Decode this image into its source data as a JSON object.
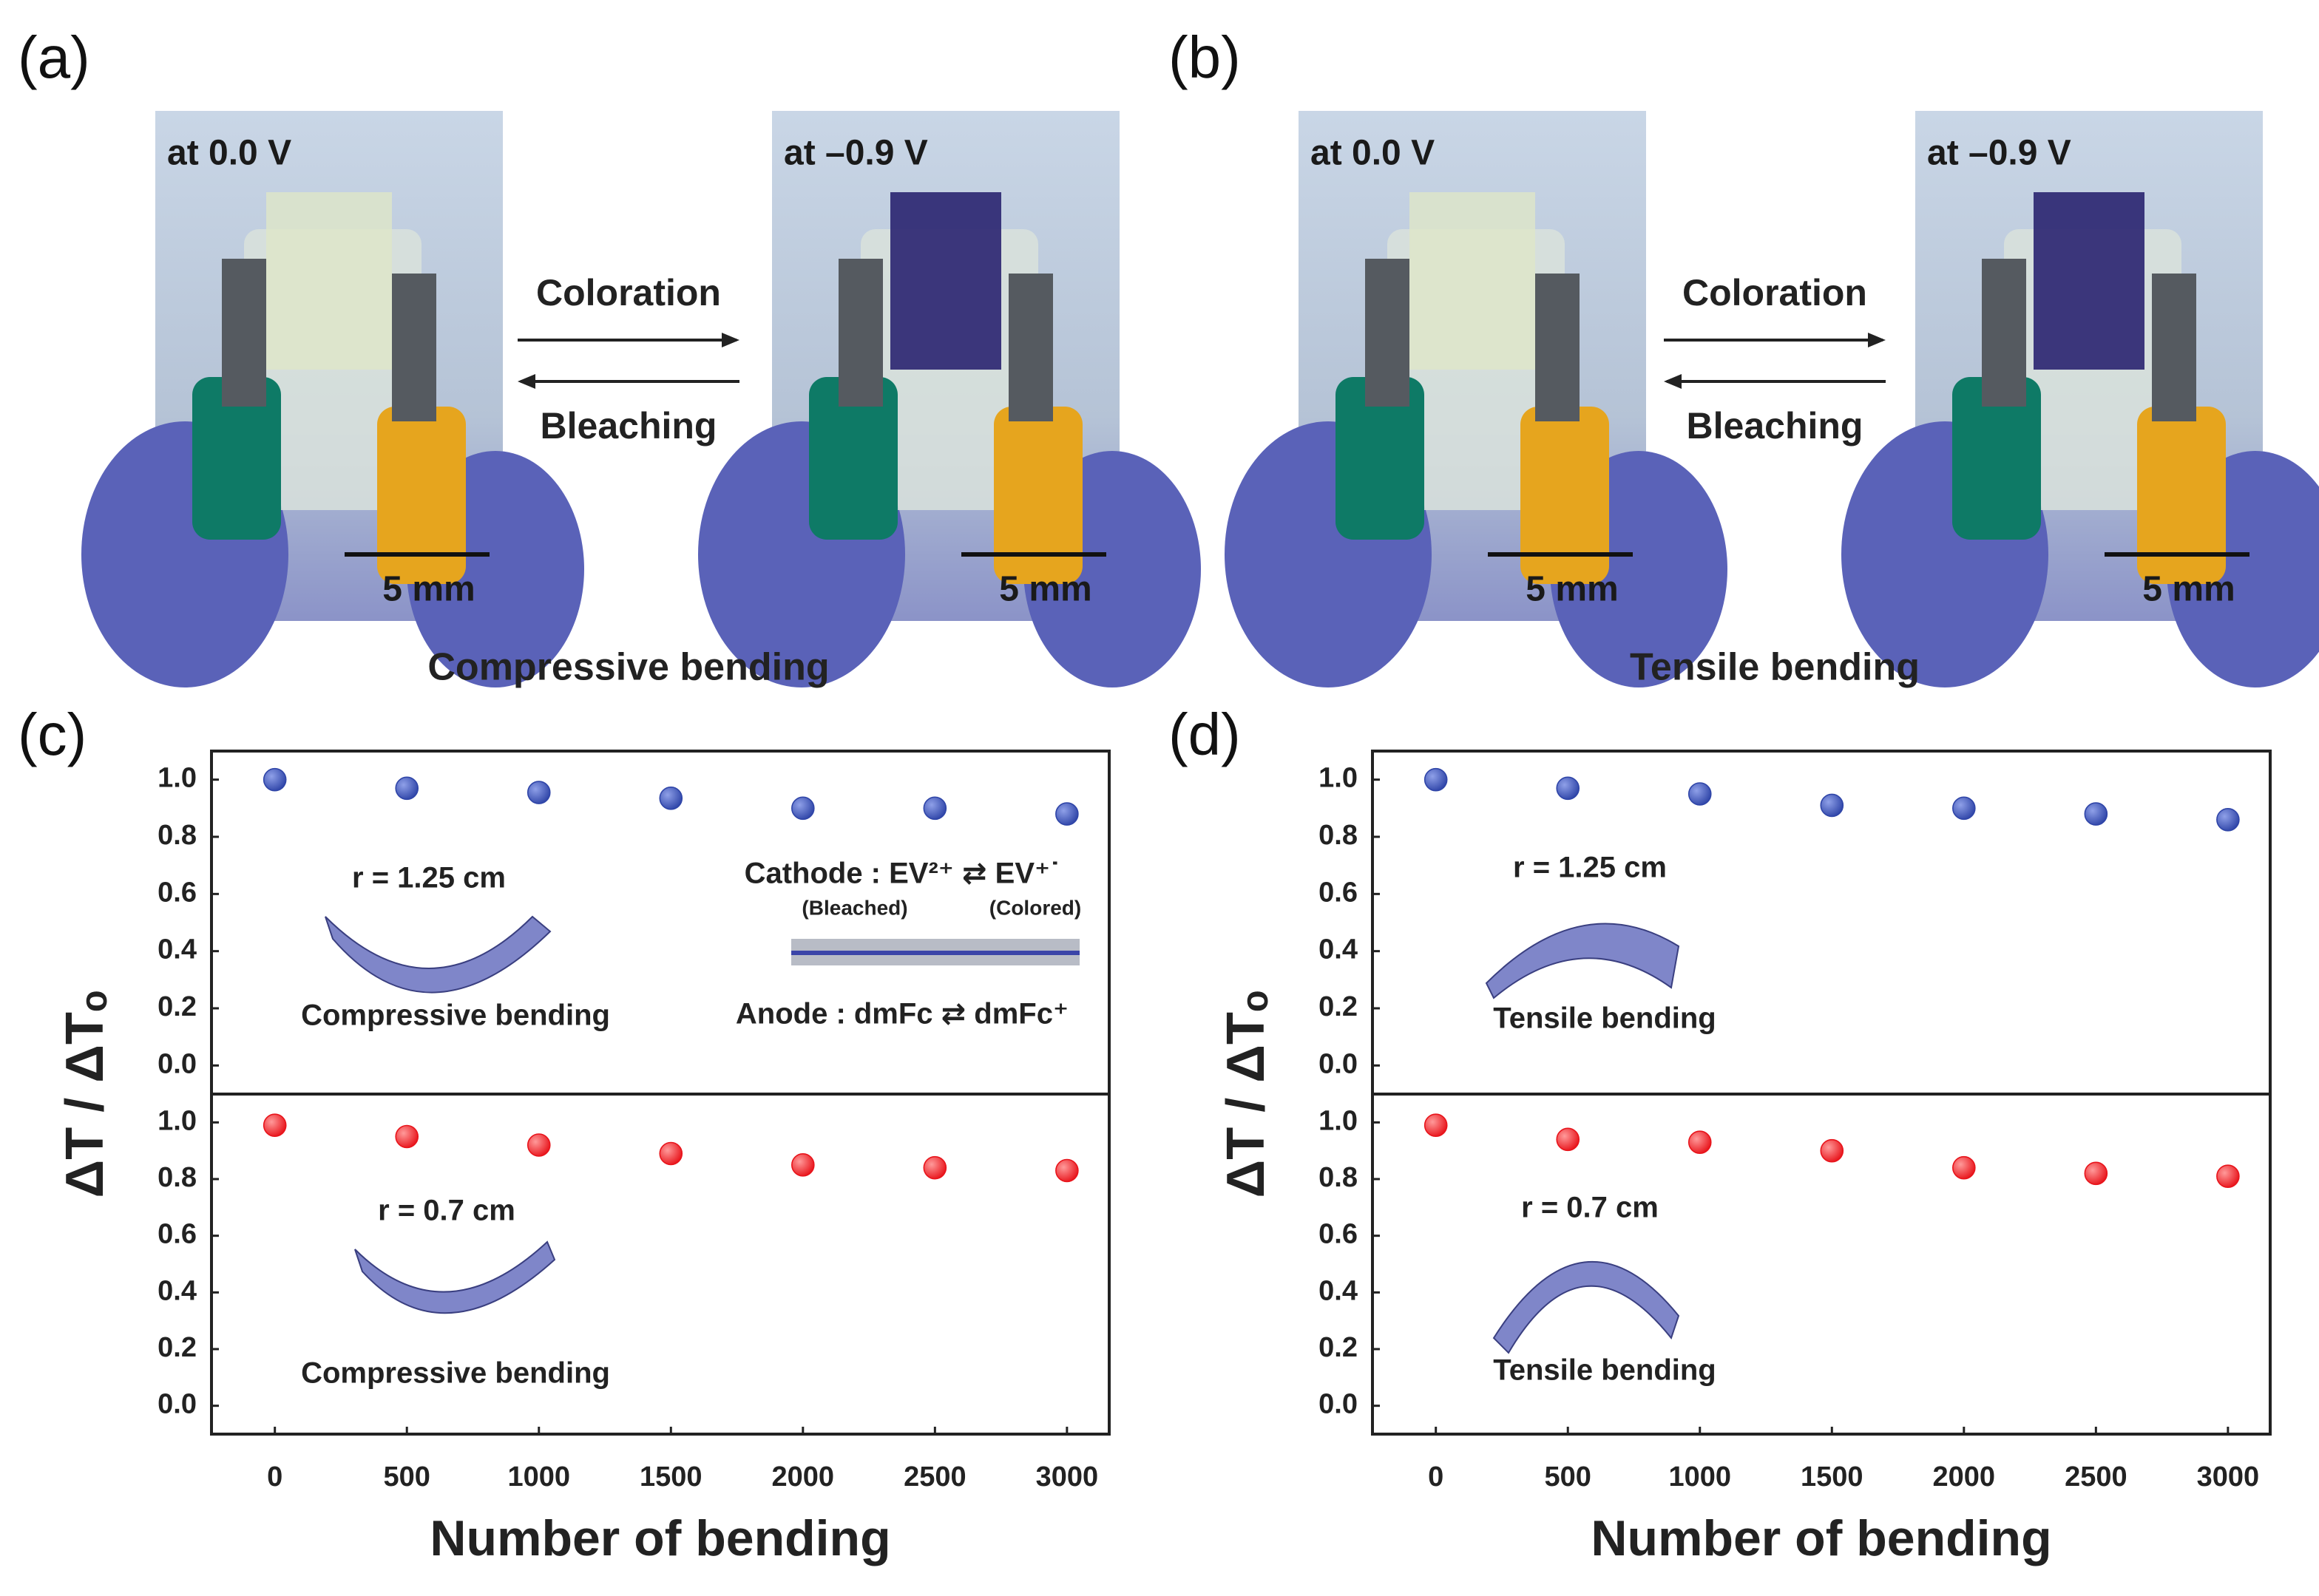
{
  "panel_labels": [
    "(a)",
    "(b)",
    "(c)",
    "(d)"
  ],
  "photo_panels": [
    {
      "left_label": "at 0.0 V",
      "right_label": "at –0.9 V",
      "scale_bar": "5 mm",
      "forward": "Coloration",
      "backward": "Bleaching",
      "caption": "Compressive  bending"
    },
    {
      "left_label": "at 0.0 V",
      "right_label": "at –0.9 V",
      "scale_bar": "5 mm",
      "forward": "Coloration",
      "backward": "Bleaching",
      "caption": "Tensile  bending"
    }
  ],
  "chart_data": [
    {
      "type": "scatter",
      "ylabel": "ΔT / ΔTₒ",
      "x": [
        0,
        500,
        1000,
        1500,
        2000,
        2500,
        3000
      ],
      "values": [
        1.0,
        0.97,
        0.955,
        0.935,
        0.9,
        0.9,
        0.88
      ],
      "color": "#2f45a8",
      "xlim": [
        -240,
        3160
      ],
      "ylim": [
        -0.1,
        1.1
      ],
      "yticks": [
        {
          "value": 0,
          "label": "0.0"
        },
        0.2,
        0.4,
        0.6,
        0.8,
        {
          "value": 1,
          "label": "1.0"
        }
      ],
      "annotations": [
        "r = 1.25 cm",
        "Compressive bending",
        "Cathode : EV²⁺ ⇄ EV⁺˙",
        "(Bleached)",
        "(Colored)",
        "Anode : dmFc ⇄ dmFc⁺"
      ]
    },
    {
      "type": "scatter",
      "xlabel": "Number of bending",
      "x": [
        0,
        500,
        1000,
        1500,
        2000,
        2500,
        3000
      ],
      "values": [
        0.99,
        0.95,
        0.92,
        0.89,
        0.85,
        0.84,
        0.83
      ],
      "color": "#e8141b",
      "xlim": [
        -240,
        3160
      ],
      "ylim": [
        -0.1,
        1.1
      ],
      "xticks": [
        0,
        500,
        1000,
        1500,
        2000,
        2500,
        3000
      ],
      "yticks": [
        {
          "value": 0,
          "label": "0.0"
        },
        0.2,
        0.4,
        0.6,
        0.8,
        {
          "value": 1,
          "label": "1.0"
        }
      ],
      "annotations": [
        "r = 0.7 cm",
        "Compressive bending"
      ]
    },
    {
      "type": "scatter",
      "ylabel": "ΔT / ΔTₒ",
      "x": [
        0,
        500,
        1000,
        1500,
        2000,
        2500,
        3000
      ],
      "values": [
        1.0,
        0.97,
        0.95,
        0.91,
        0.9,
        0.88,
        0.86
      ],
      "color": "#2f45a8",
      "xlim": [
        -240,
        3160
      ],
      "ylim": [
        -0.1,
        1.1
      ],
      "yticks": [
        {
          "value": 0,
          "label": "0.0"
        },
        0.2,
        0.4,
        0.6,
        0.8,
        {
          "value": 1,
          "label": "1.0"
        }
      ],
      "annotations": [
        "r = 1.25 cm",
        "Tensile bending"
      ]
    },
    {
      "type": "scatter",
      "xlabel": "Number of bending",
      "x": [
        0,
        500,
        1000,
        1500,
        2000,
        2500,
        3000
      ],
      "values": [
        0.99,
        0.94,
        0.93,
        0.9,
        0.84,
        0.82,
        0.81
      ],
      "color": "#e8141b",
      "xlim": [
        -240,
        3160
      ],
      "ylim": [
        -0.1,
        1.1
      ],
      "xticks": [
        0,
        500,
        1000,
        1500,
        2000,
        2500,
        3000
      ],
      "yticks": [
        {
          "value": 0,
          "label": "0.0"
        },
        0.2,
        0.4,
        0.6,
        0.8,
        {
          "value": 1,
          "label": "1.0"
        }
      ],
      "annotations": [
        "r = 0.7 cm",
        "Tensile bending"
      ]
    }
  ]
}
